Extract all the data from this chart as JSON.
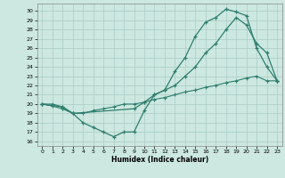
{
  "xlabel": "Humidex (Indice chaleur)",
  "xlim": [
    -0.5,
    23.5
  ],
  "ylim": [
    15.5,
    30.8
  ],
  "yticks": [
    16,
    17,
    18,
    19,
    20,
    21,
    22,
    23,
    24,
    25,
    26,
    27,
    28,
    29,
    30
  ],
  "xticks": [
    0,
    1,
    2,
    3,
    4,
    5,
    6,
    7,
    8,
    9,
    10,
    11,
    12,
    13,
    14,
    15,
    16,
    17,
    18,
    19,
    20,
    21,
    22,
    23
  ],
  "bg_color": "#cce8e0",
  "line_color": "#2e7d6e",
  "grid_color": "#aaccc5",
  "line1_x": [
    0,
    1,
    2,
    3,
    4,
    5,
    6,
    7,
    8,
    9,
    10,
    11,
    12,
    13,
    14,
    15,
    16,
    17,
    18,
    19,
    20,
    21,
    22,
    23
  ],
  "line1_y": [
    20,
    19.8,
    19.5,
    19.0,
    18.0,
    17.5,
    17.0,
    16.5,
    17.0,
    17.0,
    19.3,
    21.0,
    21.5,
    23.5,
    25.0,
    27.3,
    28.8,
    29.3,
    30.2,
    29.9,
    29.5,
    26.0,
    24.0,
    22.5
  ],
  "line2_x": [
    0,
    2,
    3,
    9,
    10,
    11,
    12,
    13,
    14,
    15,
    16,
    17,
    18,
    19,
    20,
    21,
    22,
    23
  ],
  "line2_y": [
    20,
    19.7,
    19.0,
    19.5,
    20.2,
    21.0,
    21.5,
    22.0,
    23.0,
    24.0,
    25.5,
    26.5,
    28.0,
    29.3,
    28.5,
    26.5,
    25.5,
    22.5
  ],
  "line3_x": [
    0,
    1,
    2,
    3,
    4,
    5,
    6,
    7,
    8,
    9,
    10,
    11,
    12,
    13,
    14,
    15,
    16,
    17,
    18,
    19,
    20,
    21,
    22,
    23
  ],
  "line3_y": [
    20,
    20.0,
    19.7,
    19.0,
    19.0,
    19.3,
    19.5,
    19.7,
    20.0,
    20.0,
    20.2,
    20.5,
    20.7,
    21.0,
    21.3,
    21.5,
    21.8,
    22.0,
    22.3,
    22.5,
    22.8,
    23.0,
    22.5,
    22.5
  ]
}
